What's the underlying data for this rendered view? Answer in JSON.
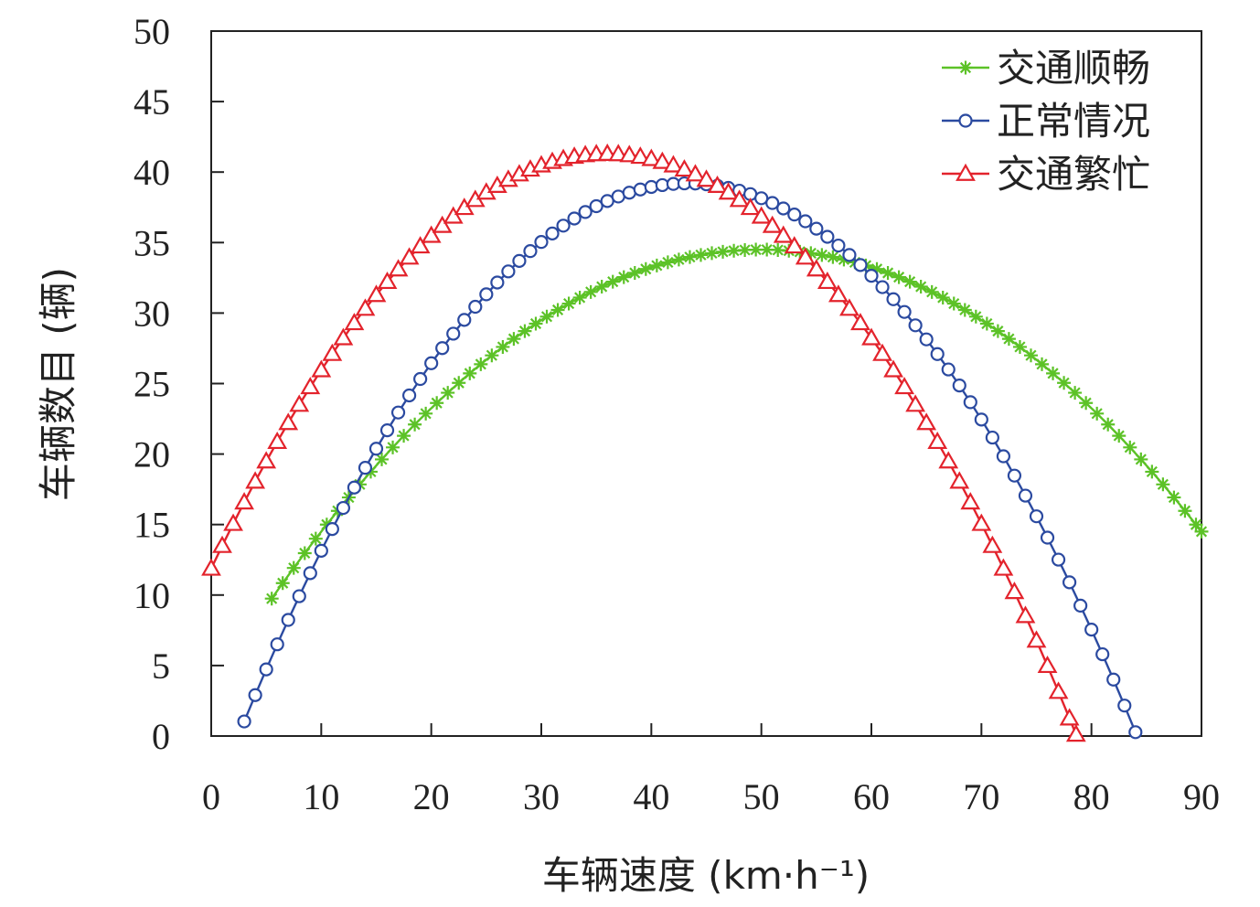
{
  "chart_data": {
    "type": "line",
    "title": "",
    "xlabel": "车辆速度 (km·h⁻¹)",
    "ylabel": "车辆数目 (辆)",
    "xlim": [
      0,
      90
    ],
    "ylim": [
      0,
      50
    ],
    "xticks": [
      "0",
      "10",
      "20",
      "30",
      "40",
      "50",
      "60",
      "70",
      "80",
      "90"
    ],
    "yticks": [
      "0",
      "5",
      "10",
      "15",
      "20",
      "25",
      "30",
      "35",
      "40",
      "45",
      "50"
    ],
    "grid": false,
    "legend_position": "top-right",
    "series": [
      {
        "name": "交通顺畅",
        "color": "#5cc227",
        "marker": "asterisk",
        "x_start": 5.5,
        "x_end": 90,
        "x_step": 1,
        "peak_x": 50,
        "peak_y": 34.5,
        "curvature": 0.0125
      },
      {
        "name": "正常情况",
        "color": "#2b4aa0",
        "marker": "circle",
        "x_start": 3,
        "x_end": 84.3,
        "x_step": 1,
        "peak_x": 43.3,
        "peak_y": 39.2,
        "curvature": 0.0235
      },
      {
        "name": "交通繁忙",
        "color": "#e3232c",
        "marker": "triangle",
        "x_start": 0,
        "x_end": 78.6,
        "x_step": 1,
        "peak_x": 36,
        "peak_y": 41.3,
        "curvature": 0.0227
      }
    ]
  }
}
